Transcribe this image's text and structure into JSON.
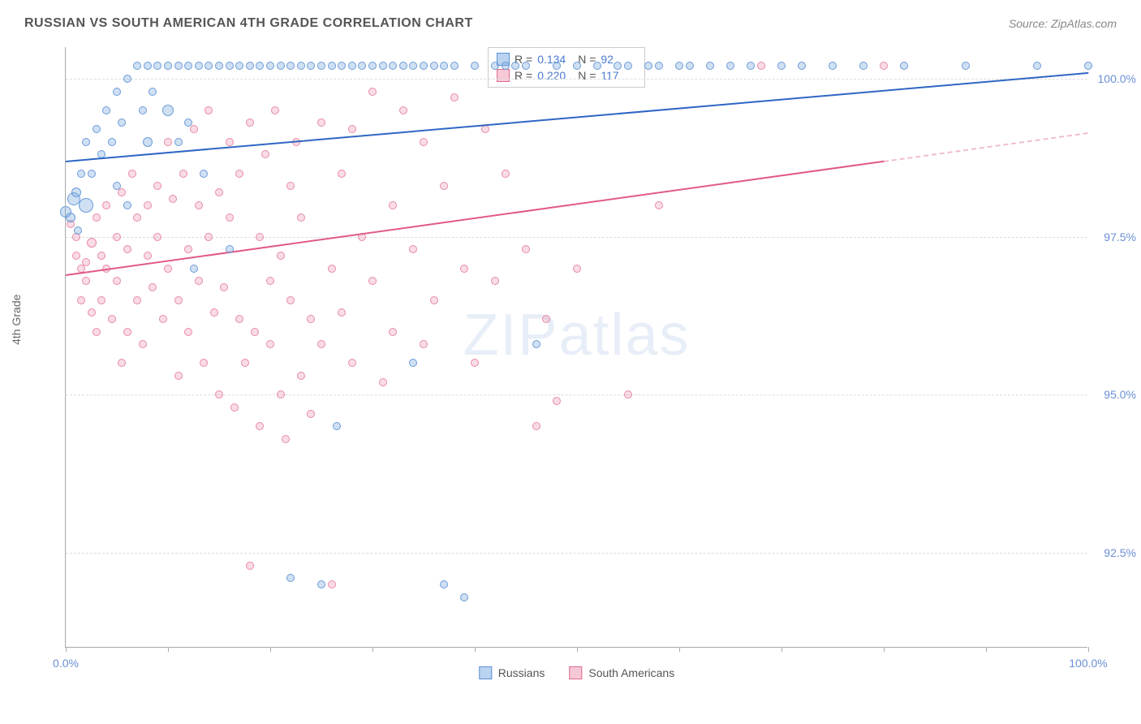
{
  "header": {
    "title": "RUSSIAN VS SOUTH AMERICAN 4TH GRADE CORRELATION CHART",
    "source": "Source: ZipAtlas.com"
  },
  "watermark": {
    "part1": "ZIP",
    "part2": "atlas"
  },
  "axes": {
    "ylabel": "4th Grade",
    "xlim": [
      0,
      100
    ],
    "ylim": [
      91,
      100.5
    ],
    "xticks": [
      0,
      10,
      20,
      30,
      40,
      50,
      60,
      70,
      80,
      90,
      100
    ],
    "xtick_labels_shown": {
      "0": "0.0%",
      "100": "100.0%"
    },
    "yticks": [
      92.5,
      95.0,
      97.5,
      100.0
    ],
    "ytick_labels": [
      "92.5%",
      "95.0%",
      "97.5%",
      "100.0%"
    ]
  },
  "legend_top": {
    "rows": [
      {
        "swatch_fill": "#b9d3f0",
        "swatch_border": "#5b8fd6",
        "r_label": "R =",
        "r_val": "0.134",
        "n_label": "N =",
        "n_val": "92"
      },
      {
        "swatch_fill": "#f7c9d6",
        "swatch_border": "#e06a8f",
        "r_label": "R =",
        "r_val": "0.220",
        "n_label": "N =",
        "n_val": "117"
      }
    ]
  },
  "legend_bottom": {
    "items": [
      {
        "swatch_fill": "#b9d3f0",
        "swatch_border": "#5b8fd6",
        "label": "Russians"
      },
      {
        "swatch_fill": "#f7c9d6",
        "swatch_border": "#e06a8f",
        "label": "South Americans"
      }
    ]
  },
  "series": {
    "russians": {
      "color_fill": "rgba(120,165,220,0.35)",
      "color_border": "#6a9bd8",
      "trend": {
        "x1": 0,
        "y1": 98.7,
        "x2": 100,
        "y2": 100.1,
        "color": "#2f66c4",
        "width": 2
      },
      "points": [
        [
          0,
          97.9,
          14
        ],
        [
          0.5,
          97.8,
          12
        ],
        [
          0.8,
          98.1,
          16
        ],
        [
          1,
          98.2,
          12
        ],
        [
          1.2,
          97.6,
          10
        ],
        [
          1.5,
          98.5,
          10
        ],
        [
          2,
          98.0,
          18
        ],
        [
          2,
          99.0,
          10
        ],
        [
          2.5,
          98.5,
          10
        ],
        [
          3,
          99.2,
          10
        ],
        [
          3.5,
          98.8,
          10
        ],
        [
          4,
          99.5,
          10
        ],
        [
          4.5,
          99.0,
          10
        ],
        [
          5,
          99.8,
          10
        ],
        [
          5,
          98.3,
          10
        ],
        [
          5.5,
          99.3,
          10
        ],
        [
          6,
          100.0,
          10
        ],
        [
          6,
          98.0,
          10
        ],
        [
          7,
          100.2,
          10
        ],
        [
          7.5,
          99.5,
          10
        ],
        [
          8,
          99.0,
          12
        ],
        [
          8,
          100.2,
          10
        ],
        [
          8.5,
          99.8,
          10
        ],
        [
          9,
          100.2,
          10
        ],
        [
          10,
          99.5,
          14
        ],
        [
          10,
          100.2,
          10
        ],
        [
          11,
          99.0,
          10
        ],
        [
          11,
          100.2,
          10
        ],
        [
          12,
          99.3,
          10
        ],
        [
          12,
          100.2,
          10
        ],
        [
          12.5,
          97.0,
          10
        ],
        [
          13,
          100.2,
          10
        ],
        [
          13.5,
          98.5,
          10
        ],
        [
          14,
          100.2,
          10
        ],
        [
          15,
          100.2,
          10
        ],
        [
          16,
          100.2,
          10
        ],
        [
          16,
          97.3,
          10
        ],
        [
          17,
          100.2,
          10
        ],
        [
          18,
          100.2,
          10
        ],
        [
          19,
          100.2,
          10
        ],
        [
          20,
          100.2,
          10
        ],
        [
          21,
          100.2,
          10
        ],
        [
          22,
          100.2,
          10
        ],
        [
          22,
          92.1,
          10
        ],
        [
          23,
          100.2,
          10
        ],
        [
          24,
          100.2,
          10
        ],
        [
          25,
          100.2,
          10
        ],
        [
          25,
          92.0,
          10
        ],
        [
          26,
          100.2,
          10
        ],
        [
          27,
          100.2,
          10
        ],
        [
          26.5,
          94.5,
          10
        ],
        [
          28,
          100.2,
          10
        ],
        [
          29,
          100.2,
          10
        ],
        [
          30,
          100.2,
          10
        ],
        [
          31,
          100.2,
          10
        ],
        [
          32,
          100.2,
          10
        ],
        [
          33,
          100.2,
          10
        ],
        [
          34,
          100.2,
          10
        ],
        [
          34,
          95.5,
          10
        ],
        [
          35,
          100.2,
          10
        ],
        [
          36,
          100.2,
          10
        ],
        [
          37,
          100.2,
          10
        ],
        [
          37,
          92.0,
          10
        ],
        [
          38,
          100.2,
          10
        ],
        [
          39,
          91.8,
          10
        ],
        [
          40,
          100.2,
          10
        ],
        [
          42,
          100.2,
          10
        ],
        [
          43,
          100.2,
          10
        ],
        [
          44,
          100.2,
          10
        ],
        [
          45,
          100.2,
          10
        ],
        [
          46,
          95.8,
          10
        ],
        [
          48,
          100.2,
          10
        ],
        [
          50,
          100.2,
          10
        ],
        [
          52,
          100.2,
          10
        ],
        [
          54,
          100.2,
          10
        ],
        [
          55,
          100.2,
          10
        ],
        [
          57,
          100.2,
          10
        ],
        [
          58,
          100.2,
          10
        ],
        [
          60,
          100.2,
          10
        ],
        [
          61,
          100.2,
          10
        ],
        [
          63,
          100.2,
          10
        ],
        [
          65,
          100.2,
          10
        ],
        [
          67,
          100.2,
          10
        ],
        [
          70,
          100.2,
          10
        ],
        [
          72,
          100.2,
          10
        ],
        [
          75,
          100.2,
          10
        ],
        [
          78,
          100.2,
          10
        ],
        [
          82,
          100.2,
          10
        ],
        [
          88,
          100.2,
          10
        ],
        [
          95,
          100.2,
          10
        ],
        [
          100,
          100.2,
          10
        ]
      ]
    },
    "south_americans": {
      "color_fill": "rgba(235,140,170,0.30)",
      "color_border": "#e88aa8",
      "trend": {
        "x1": 0,
        "y1": 96.9,
        "x2": 80,
        "y2": 98.7,
        "color": "#e05a85",
        "width": 2,
        "dash_ext_x2": 100,
        "dash_ext_y2": 99.15
      },
      "points": [
        [
          0.5,
          97.7,
          10
        ],
        [
          1,
          97.5,
          10
        ],
        [
          1,
          97.2,
          10
        ],
        [
          1.5,
          97.0,
          10
        ],
        [
          1.5,
          96.5,
          10
        ],
        [
          2,
          97.1,
          10
        ],
        [
          2,
          96.8,
          10
        ],
        [
          2.5,
          97.4,
          12
        ],
        [
          2.5,
          96.3,
          10
        ],
        [
          3,
          97.8,
          10
        ],
        [
          3,
          96.0,
          10
        ],
        [
          3.5,
          97.2,
          10
        ],
        [
          3.5,
          96.5,
          10
        ],
        [
          4,
          98.0,
          10
        ],
        [
          4,
          97.0,
          10
        ],
        [
          4.5,
          96.2,
          10
        ],
        [
          5,
          97.5,
          10
        ],
        [
          5,
          96.8,
          10
        ],
        [
          5.5,
          98.2,
          10
        ],
        [
          5.5,
          95.5,
          10
        ],
        [
          6,
          97.3,
          10
        ],
        [
          6,
          96.0,
          10
        ],
        [
          6.5,
          98.5,
          10
        ],
        [
          7,
          97.8,
          10
        ],
        [
          7,
          96.5,
          10
        ],
        [
          7.5,
          95.8,
          10
        ],
        [
          8,
          98.0,
          10
        ],
        [
          8,
          97.2,
          10
        ],
        [
          8.5,
          96.7,
          10
        ],
        [
          9,
          98.3,
          10
        ],
        [
          9,
          97.5,
          10
        ],
        [
          9.5,
          96.2,
          10
        ],
        [
          10,
          99.0,
          10
        ],
        [
          10,
          97.0,
          10
        ],
        [
          10.5,
          98.1,
          10
        ],
        [
          11,
          96.5,
          10
        ],
        [
          11,
          95.3,
          10
        ],
        [
          11.5,
          98.5,
          10
        ],
        [
          12,
          97.3,
          10
        ],
        [
          12,
          96.0,
          10
        ],
        [
          12.5,
          99.2,
          10
        ],
        [
          13,
          98.0,
          10
        ],
        [
          13,
          96.8,
          10
        ],
        [
          13.5,
          95.5,
          10
        ],
        [
          14,
          97.5,
          10
        ],
        [
          14,
          99.5,
          10
        ],
        [
          14.5,
          96.3,
          10
        ],
        [
          15,
          98.2,
          10
        ],
        [
          15,
          95.0,
          10
        ],
        [
          15.5,
          96.7,
          10
        ],
        [
          16,
          99.0,
          10
        ],
        [
          16,
          97.8,
          10
        ],
        [
          16.5,
          94.8,
          10
        ],
        [
          17,
          96.2,
          10
        ],
        [
          17,
          98.5,
          10
        ],
        [
          17.5,
          95.5,
          10
        ],
        [
          18,
          99.3,
          10
        ],
        [
          18,
          92.3,
          10
        ],
        [
          18.5,
          96.0,
          10
        ],
        [
          19,
          97.5,
          10
        ],
        [
          19,
          94.5,
          10
        ],
        [
          19.5,
          98.8,
          10
        ],
        [
          20,
          95.8,
          10
        ],
        [
          20,
          96.8,
          10
        ],
        [
          20.5,
          99.5,
          10
        ],
        [
          21,
          95.0,
          10
        ],
        [
          21,
          97.2,
          10
        ],
        [
          21.5,
          94.3,
          10
        ],
        [
          22,
          98.3,
          10
        ],
        [
          22,
          96.5,
          10
        ],
        [
          22.5,
          99.0,
          10
        ],
        [
          23,
          95.3,
          10
        ],
        [
          23,
          97.8,
          10
        ],
        [
          24,
          94.7,
          10
        ],
        [
          24,
          96.2,
          10
        ],
        [
          25,
          99.3,
          10
        ],
        [
          25,
          95.8,
          10
        ],
        [
          26,
          97.0,
          10
        ],
        [
          26,
          92.0,
          10
        ],
        [
          27,
          98.5,
          10
        ],
        [
          27,
          96.3,
          10
        ],
        [
          28,
          95.5,
          10
        ],
        [
          28,
          99.2,
          10
        ],
        [
          29,
          97.5,
          10
        ],
        [
          30,
          96.8,
          10
        ],
        [
          30,
          99.8,
          10
        ],
        [
          31,
          95.2,
          10
        ],
        [
          32,
          98.0,
          10
        ],
        [
          32,
          96.0,
          10
        ],
        [
          33,
          99.5,
          10
        ],
        [
          34,
          97.3,
          10
        ],
        [
          35,
          95.8,
          10
        ],
        [
          35,
          99.0,
          10
        ],
        [
          36,
          96.5,
          10
        ],
        [
          37,
          98.3,
          10
        ],
        [
          38,
          99.7,
          10
        ],
        [
          39,
          97.0,
          10
        ],
        [
          40,
          95.5,
          10
        ],
        [
          41,
          99.2,
          10
        ],
        [
          42,
          96.8,
          10
        ],
        [
          43,
          98.5,
          10
        ],
        [
          45,
          97.3,
          10
        ],
        [
          46,
          94.5,
          10
        ],
        [
          47,
          96.2,
          10
        ],
        [
          48,
          94.9,
          10
        ],
        [
          50,
          97.0,
          10
        ],
        [
          55,
          95.0,
          10
        ],
        [
          58,
          98.0,
          10
        ],
        [
          68,
          100.2,
          10
        ],
        [
          80,
          100.2,
          10
        ]
      ]
    }
  },
  "style": {
    "plot_bg": "#ffffff",
    "grid_color": "#dddddd",
    "axis_color": "#aaaaaa",
    "tick_label_color": "#6b8fd6",
    "title_color": "#555555"
  }
}
